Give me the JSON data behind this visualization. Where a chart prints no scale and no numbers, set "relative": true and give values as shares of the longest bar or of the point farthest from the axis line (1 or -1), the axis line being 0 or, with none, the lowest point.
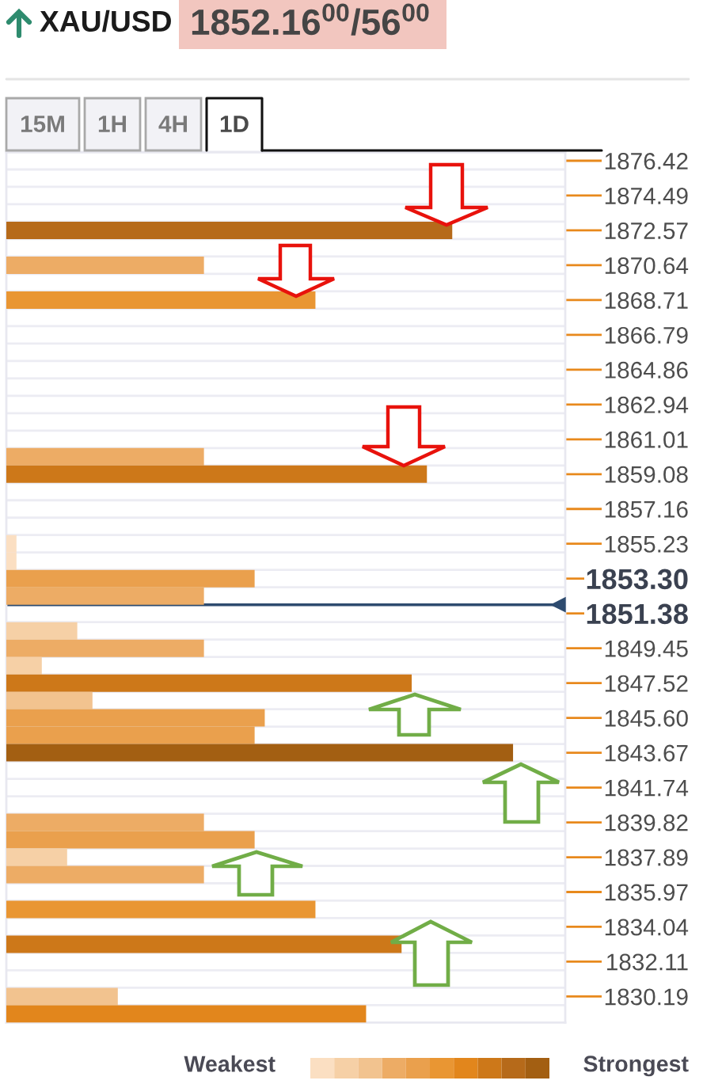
{
  "chart_data": {
    "type": "bar",
    "title": "XAU/USD",
    "subtitle": "1852.16$^{00}$/56$^{00}$",
    "orientation": "horizontal",
    "relative": true,
    "categories": [
      "1876.42",
      null,
      "1874.49",
      null,
      "1872.57",
      null,
      "1870.64",
      null,
      "1868.71",
      null,
      "1866.79",
      null,
      "1864.86",
      null,
      "1862.94",
      null,
      "1861.01",
      null,
      "1859.08",
      null,
      "1857.16",
      null,
      "1855.23",
      null,
      "1853.30",
      null,
      "1851.38",
      null,
      "1849.45",
      null,
      "1847.52",
      null,
      "1845.60",
      null,
      "1843.67",
      null,
      "1841.74",
      null,
      "1839.82",
      null,
      "1837.89",
      null,
      "1835.97",
      null,
      "1834.04",
      null,
      "1832.11",
      null,
      "1830.19",
      null
    ],
    "values": [
      null,
      null,
      null,
      null,
      0.88,
      null,
      0.39,
      null,
      0.61,
      null,
      null,
      null,
      null,
      null,
      null,
      null,
      null,
      0.39,
      0.83,
      null,
      null,
      null,
      0.02,
      0.02,
      0.49,
      0.39,
      null,
      0.14,
      0.39,
      0.07,
      0.8,
      0.17,
      0.51,
      0.49,
      1.0,
      null,
      null,
      null,
      0.39,
      0.49,
      0.12,
      0.39,
      null,
      0.61,
      null,
      0.78,
      null,
      null,
      0.22,
      0.71
    ],
    "colors": [
      null,
      null,
      null,
      null,
      "#b66a1a",
      null,
      "#edac65",
      null,
      "#e99633",
      null,
      null,
      null,
      null,
      null,
      null,
      null,
      null,
      "#edac65",
      "#cd7819",
      null,
      null,
      null,
      "#fbdfc2",
      "#fbdfc2",
      "#eaa04d",
      "#edac65",
      null,
      "#f6d0a6",
      "#edac65",
      "#f6d0a6",
      "#cd7819",
      "#f2c38f",
      "#eaa04d",
      "#eaa04d",
      "#a35f12",
      null,
      null,
      null,
      "#edac65",
      "#eaa04d",
      "#f6d0a6",
      "#edac65",
      null,
      "#e99633",
      null,
      "#cd7819",
      null,
      null,
      "#f2c38f",
      "#e2861c"
    ],
    "grid": "y",
    "ref_lines": [
      {
        "axis": "y",
        "value": "1851.38",
        "color": "#2e4b6f"
      }
    ],
    "annotations": [
      "15M",
      "1H",
      "4H",
      "1D",
      "Weakest",
      "Strongest"
    ]
  }
}
